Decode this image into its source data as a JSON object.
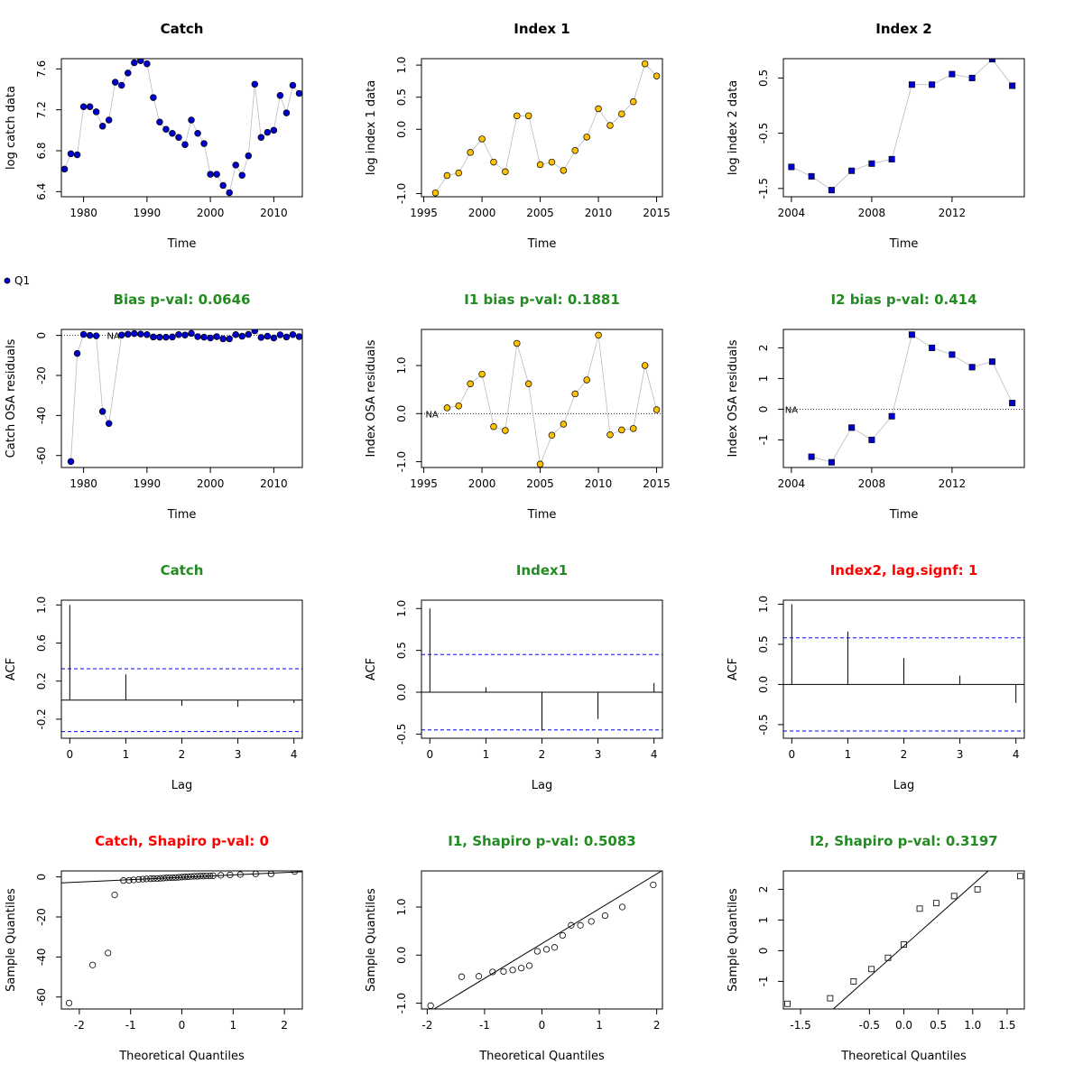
{
  "colors": {
    "catch_point": "#0000CD",
    "index1_point": "#FFC000",
    "index2_point": "#0000CD",
    "title_ok": "#228B22",
    "title_bad": "#FF0000",
    "conf_line": "#0000FF",
    "connector": "#BBBBBB"
  },
  "legend": {
    "label": "Q1"
  },
  "chart_data": [
    {
      "id": "catch-data",
      "type": "scatter",
      "marker": "circle",
      "color_key": "catch_point",
      "title": "Catch",
      "title_color": "black",
      "xlabel": "Time",
      "ylabel": "log catch data",
      "xlim": [
        1976.5,
        2014.5
      ],
      "ylim": [
        6.35,
        7.7
      ],
      "xticks": [
        1980,
        1990,
        2000,
        2010
      ],
      "xticklabels": [
        "1980",
        "1990",
        "2000",
        "2010"
      ],
      "yticks": [
        6.4,
        6.8,
        7.2,
        7.6
      ],
      "yticklabels": [
        "6.4",
        "6.8",
        "7.2",
        "7.6"
      ],
      "x": [
        1977,
        1978,
        1979,
        1980,
        1981,
        1982,
        1983,
        1984,
        1985,
        1986,
        1987,
        1988,
        1989,
        1990,
        1991,
        1992,
        1993,
        1994,
        1995,
        1996,
        1997,
        1998,
        1999,
        2000,
        2001,
        2002,
        2003,
        2004,
        2005,
        2006,
        2007,
        2008,
        2009,
        2010,
        2011,
        2012,
        2013,
        2014
      ],
      "y": [
        6.62,
        6.77,
        6.76,
        7.23,
        7.23,
        7.18,
        7.04,
        7.1,
        7.47,
        7.44,
        7.56,
        7.66,
        7.68,
        7.65,
        7.32,
        7.08,
        7.01,
        6.97,
        6.93,
        6.86,
        7.1,
        6.97,
        6.87,
        6.57,
        6.57,
        6.46,
        6.39,
        6.66,
        6.56,
        6.75,
        7.45,
        6.93,
        6.98,
        7.0,
        7.34,
        7.17,
        7.44,
        7.36
      ]
    },
    {
      "id": "index1-data",
      "type": "scatter",
      "marker": "circle",
      "color_key": "index1_point",
      "title": "Index 1",
      "title_color": "black",
      "xlabel": "Time",
      "ylabel": "log index 1 data",
      "xlim": [
        1994.8,
        2015.5
      ],
      "ylim": [
        -1.05,
        1.1
      ],
      "xticks": [
        1995,
        2000,
        2005,
        2010,
        2015
      ],
      "xticklabels": [
        "1995",
        "2000",
        "2005",
        "2010",
        "2015"
      ],
      "yticks": [
        -1.0,
        0.0,
        0.5,
        1.0
      ],
      "yticklabels": [
        "-1.0",
        "0.0",
        "0.5",
        "1.0"
      ],
      "x": [
        1996,
        1997,
        1998,
        1999,
        2000,
        2001,
        2002,
        2003,
        2004,
        2005,
        2006,
        2007,
        2008,
        2009,
        2010,
        2011,
        2012,
        2013,
        2014,
        2015
      ],
      "y": [
        -0.99,
        -0.72,
        -0.68,
        -0.36,
        -0.15,
        -0.51,
        -0.66,
        0.21,
        0.21,
        -0.55,
        -0.51,
        -0.64,
        -0.33,
        -0.12,
        0.32,
        0.06,
        0.24,
        0.43,
        1.02,
        0.83
      ]
    },
    {
      "id": "index2-data",
      "type": "scatter",
      "marker": "square",
      "color_key": "index2_point",
      "title": "Index 2",
      "title_color": "black",
      "xlabel": "Time",
      "ylabel": "log index 2 data",
      "xlim": [
        2003.6,
        2015.6
      ],
      "ylim": [
        -1.65,
        0.85
      ],
      "xticks": [
        2004,
        2008,
        2012
      ],
      "xticklabels": [
        "2004",
        "2008",
        "2012"
      ],
      "yticks": [
        -1.5,
        -0.5,
        0.5
      ],
      "yticklabels": [
        "-1.5",
        "-0.5",
        "0.5"
      ],
      "x": [
        2004,
        2005,
        2006,
        2007,
        2008,
        2009,
        2010,
        2011,
        2012,
        2013,
        2014,
        2015
      ],
      "y": [
        -1.11,
        -1.28,
        -1.53,
        -1.18,
        -1.05,
        -0.97,
        0.38,
        0.38,
        0.57,
        0.5,
        0.84,
        0.36
      ]
    },
    {
      "id": "catch-resid",
      "type": "scatter",
      "marker": "circle",
      "color_key": "catch_point",
      "title": "Bias p-val: 0.0646",
      "title_color": "green",
      "xlabel": "Time",
      "ylabel": "Catch OSA residuals",
      "xlim": [
        1976.5,
        2014.5
      ],
      "ylim": [
        -66,
        3
      ],
      "xticks": [
        1980,
        1990,
        2000,
        2010
      ],
      "xticklabels": [
        "1980",
        "1990",
        "2000",
        "2010"
      ],
      "yticks": [
        -60,
        -40,
        -20,
        0
      ],
      "yticklabels": [
        "-60",
        "-40",
        "-20",
        "0"
      ],
      "hline": 0,
      "na_label": "NA",
      "na_x": 1984.7,
      "x": [
        1978,
        1979,
        1980,
        1981,
        1982,
        1983,
        1984,
        1986,
        1987,
        1988,
        1989,
        1990,
        1991,
        1992,
        1993,
        1994,
        1995,
        1996,
        1997,
        1998,
        1999,
        2000,
        2001,
        2002,
        2003,
        2004,
        2005,
        2006,
        2007,
        2008,
        2009,
        2010,
        2011,
        2012,
        2013,
        2014
      ],
      "y": [
        -63.0,
        -9.0,
        0.5,
        0.0,
        -0.2,
        -38.0,
        -44.0,
        0.2,
        0.6,
        0.9,
        0.7,
        0.4,
        -0.8,
        -0.9,
        -0.9,
        -0.8,
        0.4,
        0.2,
        1.0,
        -0.6,
        -0.9,
        -1.3,
        -0.6,
        -1.7,
        -1.7,
        0.4,
        -0.4,
        0.5,
        2.3,
        -1.0,
        -0.4,
        -1.3,
        0.3,
        -0.8,
        0.4,
        -0.6
      ]
    },
    {
      "id": "index1-resid",
      "type": "scatter",
      "marker": "circle",
      "color_key": "index1_point",
      "title": "I1 bias p-val: 0.1881",
      "title_color": "green",
      "xlabel": "Time",
      "ylabel": "Index OSA residuals",
      "xlim": [
        1994.8,
        2015.5
      ],
      "ylim": [
        -1.12,
        1.75
      ],
      "xticks": [
        1995,
        2000,
        2005,
        2010,
        2015
      ],
      "xticklabels": [
        "1995",
        "2000",
        "2005",
        "2010",
        "2015"
      ],
      "yticks": [
        -1.0,
        0.0,
        1.0
      ],
      "yticklabels": [
        "-1.0",
        "0.0",
        "1.0"
      ],
      "hline": 0,
      "na_label": "NA",
      "na_x": 1995.7,
      "x": [
        1997,
        1998,
        1999,
        2000,
        2001,
        2002,
        2003,
        2004,
        2005,
        2006,
        2007,
        2008,
        2009,
        2010,
        2011,
        2012,
        2013,
        2014,
        2015
      ],
      "y": [
        0.12,
        0.16,
        0.62,
        0.82,
        -0.27,
        -0.35,
        1.46,
        0.62,
        -1.05,
        -0.45,
        -0.22,
        0.41,
        0.7,
        1.63,
        -0.44,
        -0.34,
        -0.31,
        1.0,
        0.08
      ]
    },
    {
      "id": "index2-resid",
      "type": "scatter",
      "marker": "square",
      "color_key": "index2_point",
      "title": "I2 bias p-val: 0.414",
      "title_color": "green",
      "xlabel": "Time",
      "ylabel": "Index OSA residuals",
      "xlim": [
        2003.6,
        2015.6
      ],
      "ylim": [
        -1.9,
        2.6
      ],
      "xticks": [
        2004,
        2008,
        2012
      ],
      "xticklabels": [
        "2004",
        "2008",
        "2012"
      ],
      "yticks": [
        -1,
        0,
        1,
        2
      ],
      "yticklabels": [
        "-1",
        "0",
        "1",
        "2"
      ],
      "hline": 0,
      "na_label": "NA",
      "na_x": 2004.0,
      "x": [
        2005,
        2006,
        2007,
        2008,
        2009,
        2010,
        2011,
        2012,
        2013,
        2014,
        2015
      ],
      "y": [
        -1.55,
        -1.73,
        -0.6,
        -1.0,
        -0.23,
        2.43,
        2.0,
        1.78,
        1.37,
        1.55,
        0.2
      ]
    },
    {
      "id": "catch-acf",
      "type": "acf",
      "title": "Catch",
      "title_color": "green",
      "xlabel": "Lag",
      "ylabel": "ACF",
      "xlim": [
        -0.15,
        4.15
      ],
      "ylim": [
        -0.4,
        1.05
      ],
      "xticks": [
        0,
        1,
        2,
        3,
        4
      ],
      "xticklabels": [
        "0",
        "1",
        "2",
        "3",
        "4"
      ],
      "yticks": [
        -0.2,
        0.2,
        0.6,
        1.0
      ],
      "yticklabels": [
        "-0.2",
        "0.2",
        "0.6",
        "1.0"
      ],
      "conf": 0.33,
      "x": [
        0,
        1,
        2,
        3,
        4
      ],
      "y": [
        1.0,
        0.27,
        -0.06,
        -0.07,
        -0.03
      ]
    },
    {
      "id": "index1-acf",
      "type": "acf",
      "title": "Index1",
      "title_color": "green",
      "xlabel": "Lag",
      "ylabel": "ACF",
      "xlim": [
        -0.15,
        4.15
      ],
      "ylim": [
        -0.55,
        1.1
      ],
      "xticks": [
        0,
        1,
        2,
        3,
        4
      ],
      "xticklabels": [
        "0",
        "1",
        "2",
        "3",
        "4"
      ],
      "yticks": [
        -0.5,
        0.0,
        0.5,
        1.0
      ],
      "yticklabels": [
        "-0.5",
        "0.0",
        "0.5",
        "1.0"
      ],
      "conf": 0.45,
      "x": [
        0,
        1,
        2,
        3,
        4
      ],
      "y": [
        1.0,
        0.06,
        -0.46,
        -0.32,
        0.11
      ]
    },
    {
      "id": "index2-acf",
      "type": "acf",
      "title": "Index2, lag.signf: 1",
      "title_color": "red",
      "xlabel": "Lag",
      "ylabel": "ACF",
      "xlim": [
        -0.15,
        4.15
      ],
      "ylim": [
        -0.67,
        1.05
      ],
      "xticks": [
        0,
        1,
        2,
        3,
        4
      ],
      "xticklabels": [
        "0",
        "1",
        "2",
        "3",
        "4"
      ],
      "yticks": [
        -0.5,
        0.0,
        0.5,
        1.0
      ],
      "yticklabels": [
        "-0.5",
        "0.0",
        "0.5",
        "1.0"
      ],
      "conf": 0.58,
      "x": [
        0,
        1,
        2,
        3,
        4
      ],
      "y": [
        1.0,
        0.66,
        0.33,
        0.11,
        -0.23
      ]
    },
    {
      "id": "catch-qq",
      "type": "qq",
      "marker": "circle",
      "title": "Catch, Shapiro p-val: 0",
      "title_color": "red",
      "xlabel": "Theoretical Quantiles",
      "ylabel": "Sample Quantiles",
      "xlim": [
        -2.35,
        2.35
      ],
      "ylim": [
        -66,
        3
      ],
      "xticks": [
        -2,
        -1,
        0,
        1,
        2
      ],
      "xticklabels": [
        "-2",
        "-1",
        "0",
        "1",
        "2"
      ],
      "yticks": [
        -60,
        -40,
        -20,
        0
      ],
      "yticklabels": [
        "-60",
        "-40",
        "-20",
        "0"
      ],
      "line": [
        [
          -2.35,
          -3.0
        ],
        [
          2.35,
          2.6
        ]
      ],
      "x": [
        -2.2,
        -1.74,
        -1.44,
        -1.31,
        -1.14,
        -1.03,
        -0.94,
        -0.84,
        -0.76,
        -0.69,
        -0.61,
        -0.55,
        -0.48,
        -0.42,
        -0.36,
        -0.3,
        -0.24,
        -0.18,
        -0.12,
        -0.06,
        0.0,
        0.06,
        0.12,
        0.18,
        0.24,
        0.3,
        0.36,
        0.42,
        0.48,
        0.55,
        0.61,
        0.76,
        0.94,
        1.14,
        1.44,
        1.74,
        2.2
      ],
      "y": [
        -63,
        -44,
        -38,
        -9,
        -1.8,
        -1.7,
        -1.5,
        -1.3,
        -1.1,
        -1.0,
        -0.9,
        -0.9,
        -0.8,
        -0.7,
        -0.6,
        -0.5,
        -0.4,
        -0.4,
        -0.3,
        -0.2,
        -0.1,
        0.0,
        0.1,
        0.2,
        0.3,
        0.3,
        0.4,
        0.4,
        0.5,
        0.5,
        0.6,
        0.8,
        1.0,
        1.2,
        1.5,
        1.5,
        2.7
      ]
    },
    {
      "id": "index1-qq",
      "type": "qq",
      "marker": "circle",
      "title": "I1, Shapiro p-val: 0.5083",
      "title_color": "green",
      "xlabel": "Theoretical Quantiles",
      "ylabel": "Sample Quantiles",
      "xlim": [
        -2.1,
        2.1
      ],
      "ylim": [
        -1.12,
        1.75
      ],
      "xticks": [
        -2,
        -1,
        0,
        1,
        2
      ],
      "xticklabels": [
        "-2",
        "-1",
        "0",
        "1",
        "2"
      ],
      "yticks": [
        -1.0,
        0.0,
        1.0
      ],
      "yticklabels": [
        "-1.0",
        "0.0",
        "1.0"
      ],
      "line": [
        [
          -2.1,
          -1.28
        ],
        [
          2.1,
          1.76
        ]
      ],
      "x": [
        -1.94,
        -1.4,
        -1.1,
        -0.86,
        -0.67,
        -0.51,
        -0.36,
        -0.22,
        -0.08,
        0.08,
        0.22,
        0.36,
        0.51,
        0.67,
        0.86,
        1.1,
        1.4,
        1.94
      ],
      "y": [
        -1.05,
        -0.45,
        -0.44,
        -0.35,
        -0.34,
        -0.31,
        -0.27,
        -0.22,
        0.08,
        0.12,
        0.16,
        0.41,
        0.62,
        0.62,
        0.7,
        0.82,
        1.0,
        1.46
      ]
    },
    {
      "id": "index2-qq",
      "type": "qq",
      "marker": "square",
      "title": "I2, Shapiro p-val: 0.3197",
      "title_color": "green",
      "xlabel": "Theoretical Quantiles",
      "ylabel": "Sample Quantiles",
      "xlim": [
        -1.75,
        1.75
      ],
      "ylim": [
        -1.9,
        2.6
      ],
      "xticks": [
        -1.5,
        -0.5,
        0.0,
        0.5,
        1.0,
        1.5
      ],
      "xticklabels": [
        "-1.5",
        "-0.5",
        "0.0",
        "0.5",
        "1.0",
        "1.5"
      ],
      "yticks": [
        -1,
        0,
        1,
        2
      ],
      "yticklabels": [
        "-1",
        "0",
        "1",
        "2"
      ],
      "line": [
        [
          -1.75,
          -3.35
        ],
        [
          1.75,
          3.65
        ]
      ],
      "x": [
        -1.69,
        -1.07,
        -0.73,
        -0.47,
        -0.23,
        0.0,
        0.23,
        0.47,
        0.73,
        1.07,
        1.69
      ],
      "y": [
        -1.73,
        -1.55,
        -1.0,
        -0.6,
        -0.23,
        0.2,
        1.37,
        1.55,
        1.78,
        2.0,
        2.43
      ]
    }
  ]
}
